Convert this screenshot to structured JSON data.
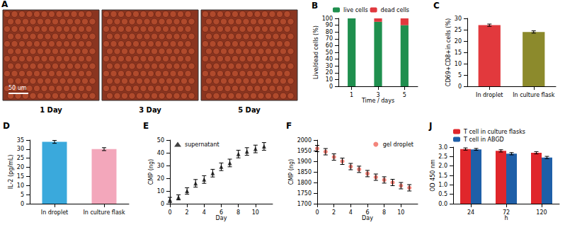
{
  "panel_a": {
    "panel": "A",
    "images": [
      "1 Day",
      "3 Day",
      "5 Day"
    ],
    "scale_bar": "50 um"
  },
  "chart_data": [
    {
      "panel": "B",
      "type": "bar",
      "stacked": true,
      "legend": "top",
      "grid": false,
      "x_label": "Time / days",
      "y_label": "Live/dead cells (%)",
      "categories": [
        "1",
        "3",
        "5"
      ],
      "series": [
        {
          "name": "live cells",
          "color": "#1f8f4e",
          "values": [
            100,
            95,
            90
          ]
        },
        {
          "name": "dead cells",
          "color": "#e0383e",
          "values": [
            0,
            5,
            10
          ]
        }
      ],
      "ylim": [
        0,
        100
      ],
      "yticks": [
        0,
        10,
        20,
        30,
        40,
        50,
        60,
        70,
        80,
        90,
        100
      ]
    },
    {
      "panel": "C",
      "type": "bar",
      "grid": false,
      "y_label": "CD69+CD8+in cells (%)",
      "categories": [
        "In droplet",
        "In culture flask"
      ],
      "values": [
        27,
        24
      ],
      "errors": [
        0.5,
        0.5
      ],
      "colors": [
        "#e2393d",
        "#8c8a2c"
      ],
      "ylim": [
        0,
        30
      ],
      "yticks": [
        0,
        5,
        10,
        15,
        20,
        25,
        30
      ]
    },
    {
      "panel": "D",
      "type": "bar",
      "grid": false,
      "y_label": "IL-2 (pg/mL)",
      "categories": [
        "In droplet",
        "In culture flask"
      ],
      "values": [
        34,
        30
      ],
      "errors": [
        0.8,
        0.8
      ],
      "colors": [
        "#3aa9dc",
        "#f3a7bb"
      ],
      "ylim": [
        0,
        35
      ],
      "yticks": [
        0,
        5,
        10,
        15,
        20,
        25,
        30,
        35
      ]
    },
    {
      "panel": "E",
      "type": "scatter",
      "legend": "upper left",
      "grid": false,
      "x_label": "Day",
      "y_label": "CMP (ng)",
      "x": [
        0,
        1,
        2,
        3,
        4,
        5,
        6,
        7,
        8,
        9,
        10,
        11
      ],
      "series": [
        {
          "name": "supernatant",
          "color": "#111111",
          "marker": "triangle",
          "values": [
            3,
            5,
            10,
            16,
            19,
            24,
            29,
            32,
            39,
            41,
            43,
            45
          ],
          "errors": [
            2,
            2,
            2.5,
            3,
            3,
            3,
            3,
            3,
            3,
            3,
            3,
            3
          ]
        }
      ],
      "xlim": [
        0,
        12
      ],
      "xticks": [
        0,
        2,
        4,
        6,
        8,
        10
      ],
      "ylim": [
        0,
        50
      ],
      "yticks": [
        0,
        10,
        20,
        30,
        40,
        50
      ]
    },
    {
      "panel": "F",
      "type": "scatter",
      "legend": "upper right",
      "grid": false,
      "x_label": "Day",
      "y_label": "CMP (ng)",
      "x": [
        0,
        1,
        2,
        3,
        4,
        5,
        6,
        7,
        8,
        9,
        10,
        11
      ],
      "series": [
        {
          "name": "gel droplet",
          "color": "#f0665a",
          "marker": "circle",
          "values": [
            1960,
            1945,
            1920,
            1900,
            1875,
            1862,
            1842,
            1825,
            1812,
            1800,
            1785,
            1775
          ],
          "errors": [
            15,
            15,
            15,
            15,
            15,
            15,
            15,
            15,
            15,
            15,
            15,
            15
          ]
        }
      ],
      "xlim": [
        0,
        12
      ],
      "xticks": [
        0,
        2,
        4,
        6,
        8,
        10
      ],
      "ylim": [
        1700,
        2000
      ],
      "yticks": [
        1700,
        1750,
        1800,
        1850,
        1900,
        1950,
        2000
      ]
    },
    {
      "panel": "J",
      "type": "bar",
      "legend": "top",
      "grid": false,
      "x_label": "h",
      "y_label": "OD 450 nm",
      "categories": [
        "24",
        "72",
        "120"
      ],
      "series": [
        {
          "name": "T cell in culture flasks",
          "color": "#e0262b",
          "values": [
            2.9,
            2.8,
            2.7
          ],
          "errors": [
            0.06,
            0.06,
            0.06
          ]
        },
        {
          "name": "T cell in ABGD",
          "color": "#1f5fa8",
          "values": [
            2.88,
            2.65,
            2.45
          ],
          "errors": [
            0.05,
            0.06,
            0.06
          ]
        }
      ],
      "ylim": [
        0,
        3
      ],
      "yticks": [
        {
          "value": 0,
          "label": "0.0"
        },
        {
          "value": 0.5,
          "label": "0.5"
        },
        {
          "value": 1,
          "label": "1.0"
        },
        {
          "value": 1.5,
          "label": "1.5"
        },
        {
          "value": 2,
          "label": "2.0"
        },
        {
          "value": 2.5,
          "label": "2.5"
        },
        {
          "value": 3,
          "label": "3.0"
        }
      ]
    }
  ]
}
